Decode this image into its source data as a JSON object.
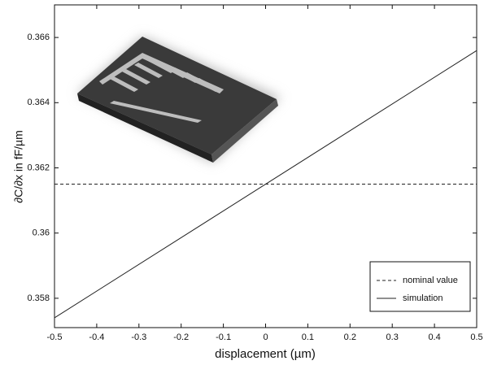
{
  "chart_data": {
    "type": "line",
    "xlabel": "displacement (µm)",
    "ylabel": "∂C/∂x  in fF/µm",
    "x": [
      -0.5,
      0.5
    ],
    "series": [
      {
        "name": "nominal value",
        "color": "#222222",
        "linestyle": "dashed",
        "values": [
          0.3615,
          0.3615
        ]
      },
      {
        "name": "simulation",
        "color": "#222222",
        "linestyle": "solid",
        "values": [
          0.3574,
          0.3656
        ]
      }
    ],
    "xlim": [
      -0.5,
      0.5
    ],
    "xticks": [
      -0.5,
      -0.4,
      -0.3,
      -0.2,
      -0.1,
      0,
      0.1,
      0.2,
      0.3,
      0.4,
      0.5
    ],
    "ylim": [
      0.3571,
      0.367
    ],
    "yticks": [
      0.358,
      0.36,
      0.362,
      0.364,
      0.366
    ],
    "grid": false,
    "legend": "lower right"
  }
}
